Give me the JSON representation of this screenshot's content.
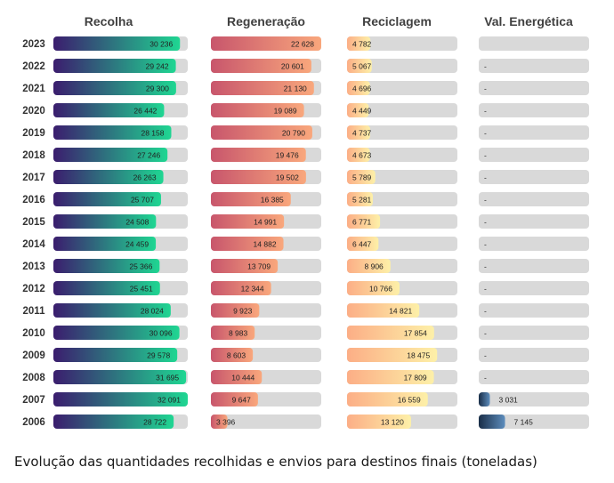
{
  "caption": "Evolução das quantidades recolhidas e envios para destinos finais (toneladas)",
  "chart_data": {
    "type": "bar",
    "categories": [
      "2023",
      "2022",
      "2021",
      "2020",
      "2019",
      "2018",
      "2017",
      "2016",
      "2015",
      "2014",
      "2013",
      "2012",
      "2011",
      "2010",
      "2009",
      "2008",
      "2007",
      "2006"
    ],
    "series": [
      {
        "name": "Recolha",
        "values": [
          30236,
          29242,
          29300,
          26442,
          28158,
          27246,
          26263,
          25707,
          24508,
          24459,
          25366,
          25451,
          28024,
          30096,
          29578,
          31695,
          32091,
          28722
        ],
        "labels": [
          "30 236",
          "29 242",
          "29 300",
          "26 442",
          "28 158",
          "27 246",
          "26 263",
          "25 707",
          "24 508",
          "24 459",
          "25 366",
          "25 451",
          "28 024",
          "30 096",
          "29 578",
          "31 695",
          "32 091",
          "28 722"
        ],
        "max": 32091,
        "gradient": [
          "#3b1d6e",
          "#1fd692"
        ]
      },
      {
        "name": "Regeneração",
        "values": [
          22628,
          20601,
          21130,
          19089,
          20790,
          19476,
          19502,
          16385,
          14991,
          14882,
          13709,
          12344,
          9923,
          8983,
          8603,
          10444,
          9647,
          3396
        ],
        "labels": [
          "22 628",
          "20 601",
          "21 130",
          "19 089",
          "20 790",
          "19 476",
          "19 502",
          "16 385",
          "14 991",
          "14 882",
          "13 709",
          "12 344",
          "9 923",
          "8 983",
          "8 603",
          "10 444",
          "9 647",
          "3 396"
        ],
        "max": 22628,
        "gradient": [
          "#c8566c",
          "#f9a77c"
        ]
      },
      {
        "name": "Reciclagem",
        "values": [
          4782,
          5067,
          4696,
          4449,
          4737,
          4673,
          5789,
          5281,
          6771,
          6447,
          8906,
          10766,
          14821,
          17854,
          18475,
          17809,
          16559,
          13120
        ],
        "labels": [
          "4 782",
          "5 067",
          "4 696",
          "4 449",
          "4 737",
          "4 673",
          "5 789",
          "5 281",
          "6 771",
          "6 447",
          "8 906",
          "10 766",
          "14 821",
          "17 854",
          "18 475",
          "17 809",
          "16 559",
          "13 120"
        ],
        "max": 22628,
        "gradient": [
          "#fcae86",
          "#fdf0a8"
        ]
      },
      {
        "name": "Val. Energética",
        "values": [
          null,
          null,
          null,
          null,
          null,
          null,
          null,
          null,
          null,
          null,
          null,
          null,
          null,
          null,
          null,
          null,
          3031,
          7145
        ],
        "labels": [
          "",
          "-",
          "-",
          "-",
          "-",
          "-",
          "-",
          "-",
          "-",
          "-",
          "-",
          "-",
          "-",
          "-",
          "-",
          "-",
          "3 031",
          "7 145"
        ],
        "max": 30000,
        "gradient": [
          "#1a2e48",
          "#5d8dbd"
        ]
      }
    ],
    "track_color": "#d9d9d9"
  }
}
